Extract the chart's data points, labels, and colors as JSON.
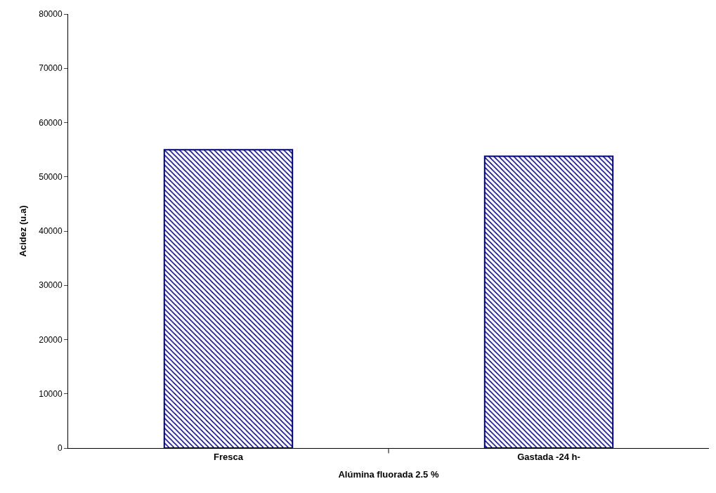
{
  "chart_data": {
    "type": "bar",
    "xlabel": "Alúmina fluorada 2.5 %",
    "ylabel": "Acidez (u.a)",
    "categories": [
      "Fresca",
      "Gastada -24 h-"
    ],
    "values": [
      55000,
      53800
    ],
    "color": "#000080",
    "ylim": [
      0,
      80000
    ],
    "yticks": [
      0,
      10000,
      20000,
      30000,
      40000,
      50000,
      60000,
      70000,
      80000
    ],
    "grid": false,
    "legend": false
  }
}
